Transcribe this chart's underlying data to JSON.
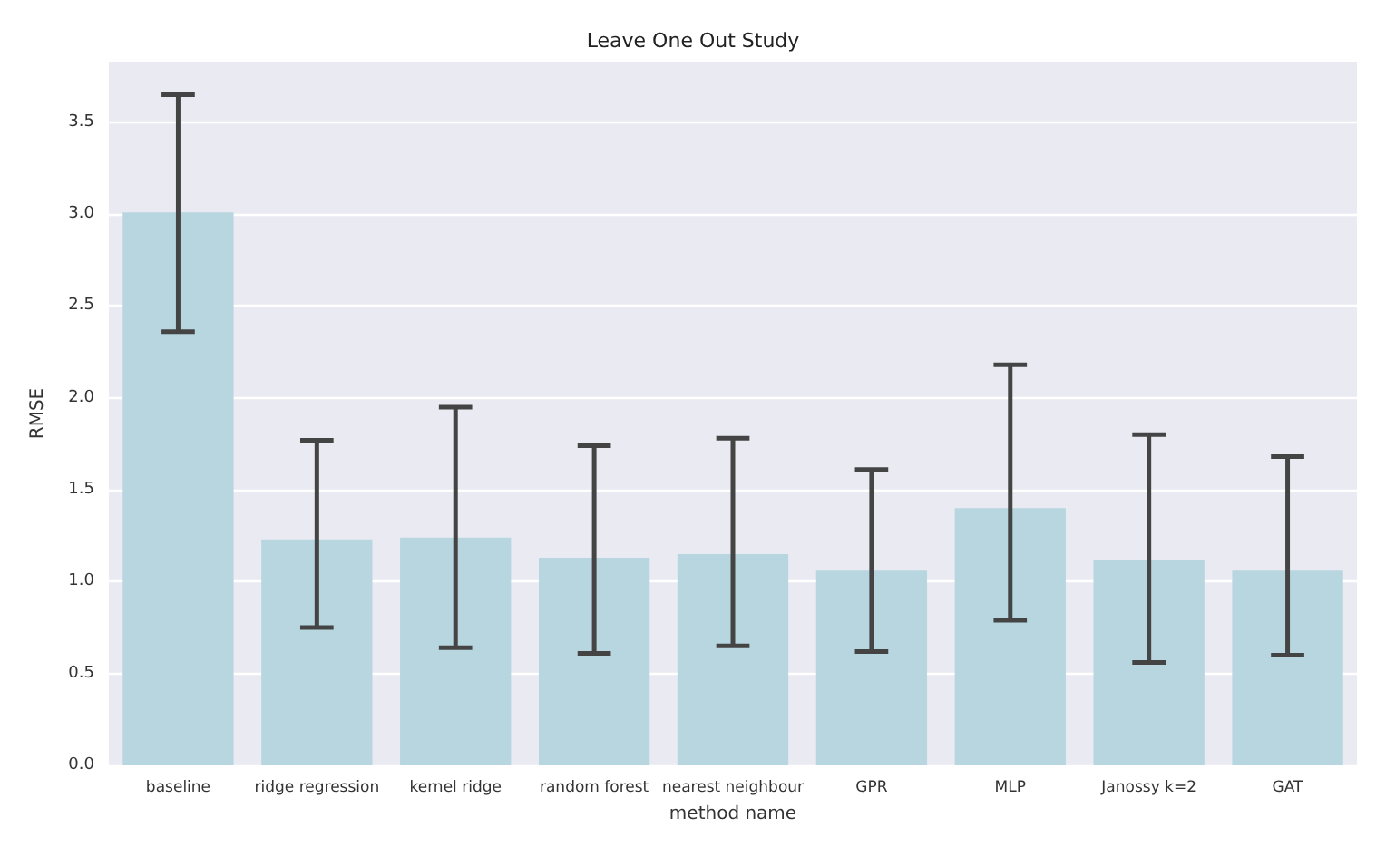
{
  "chart_data": {
    "type": "bar",
    "title": "Leave One Out Study",
    "xlabel": "method name",
    "ylabel": "RMSE",
    "categories": [
      "baseline",
      "ridge regression",
      "kernel ridge",
      "random forest",
      "nearest neighbour",
      "GPR",
      "MLP",
      "Janossy k=2",
      "GAT"
    ],
    "values": [
      3.01,
      1.23,
      1.24,
      1.13,
      1.15,
      1.06,
      1.4,
      1.12,
      1.06
    ],
    "errors": [
      [
        2.36,
        3.65
      ],
      [
        0.75,
        1.77
      ],
      [
        0.64,
        1.95
      ],
      [
        0.61,
        1.74
      ],
      [
        0.65,
        1.78
      ],
      [
        0.62,
        1.61
      ],
      [
        0.79,
        2.18
      ],
      [
        0.56,
        1.8
      ],
      [
        0.6,
        1.68
      ]
    ],
    "color": "#b7d6e0",
    "ylim": [
      0,
      3.83
    ],
    "yticks": [
      {
        "value": 0,
        "label": "0.0"
      },
      0.5,
      {
        "value": 1,
        "label": "1.0"
      },
      1.5,
      {
        "value": 2,
        "label": "2.0"
      },
      2.5,
      {
        "value": 3,
        "label": "3.0"
      },
      3.5
    ],
    "grid": "y"
  }
}
